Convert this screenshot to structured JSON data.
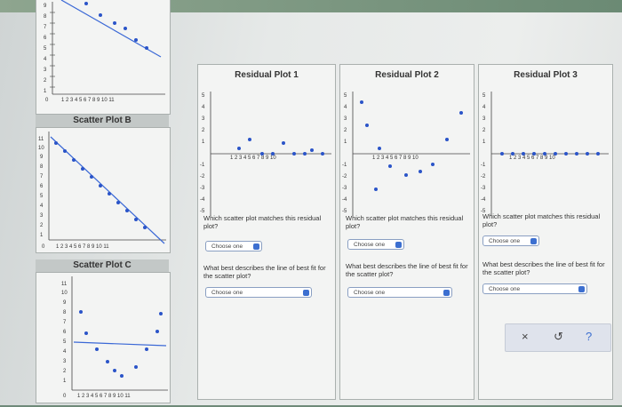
{
  "left_panels": {
    "scatter_b_title": "Scatter Plot B",
    "scatter_c_title": "Scatter Plot C"
  },
  "residual_plots": [
    {
      "title": "Residual Plot 1",
      "matches_question": "Which scatter plot matches this residual plot?",
      "matches_select": "Choose one",
      "line_question": "What best describes the line of best fit for the scatter plot?",
      "line_select": "Choose one"
    },
    {
      "title": "Residual Plot 2",
      "matches_question": "Which scatter plot matches this residual plot?",
      "matches_select": "Choose one",
      "line_question": "What best describes the line of best fit for the scatter plot?",
      "line_select": "Choose one"
    },
    {
      "title": "Residual Plot 3",
      "matches_question": "Which scatter plot matches this residual plot?",
      "matches_select": "Choose one",
      "line_question": "What best describes the line of best fit for the scatter plot?",
      "line_select": "Choose one"
    }
  ],
  "toolbar": {
    "clear": "×",
    "undo": "↺",
    "help": "?"
  },
  "colors": {
    "point": "#2a54c8",
    "line": "#3a68d6",
    "panel": "#f3f4f3"
  },
  "icons": {
    "select_chevron": "chevron-down-icon",
    "clear": "close-icon",
    "undo": "undo-icon",
    "help": "help-icon"
  }
}
